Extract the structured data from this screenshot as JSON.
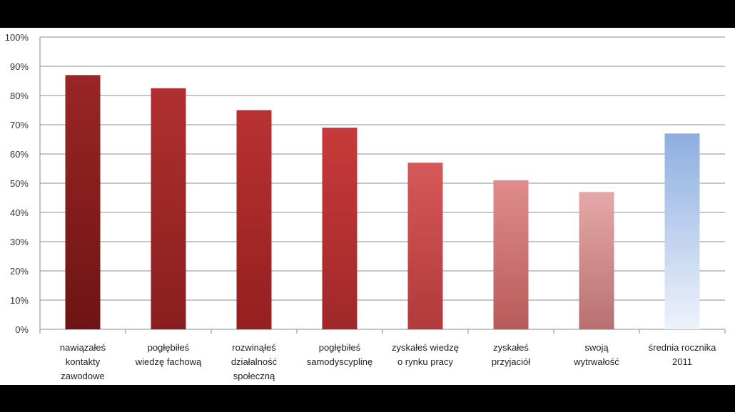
{
  "chart_data": {
    "type": "bar",
    "categories": [
      [
        "nawiązałeś",
        "kontakty",
        "zawodowe"
      ],
      [
        "pogłębiłeś",
        "wiedzę fachową"
      ],
      [
        "rozwinąłeś",
        "działalność",
        "społeczną"
      ],
      [
        "pogłębiłeś",
        "samodyscyplinę"
      ],
      [
        "zyskałeś wiedzę",
        "o rynku pracy"
      ],
      [
        "zyskałeś",
        "przyjaciół"
      ],
      [
        "swoją",
        "wytrwałość"
      ],
      [
        "średnia rocznika",
        "2011"
      ]
    ],
    "values": [
      87,
      82.5,
      75,
      69,
      57,
      51,
      47,
      67
    ],
    "bar_colors": [
      [
        "#9a2626",
        "#6e1414"
      ],
      [
        "#b03030",
        "#8a1e1e"
      ],
      [
        "#b83232",
        "#951f1f"
      ],
      [
        "#c83a3a",
        "#a02828"
      ],
      [
        "#d65858",
        "#b23a3a"
      ],
      [
        "#e08c8c",
        "#b85a5a"
      ],
      [
        "#e6a8a8",
        "#b87070"
      ],
      [
        "#8eaee0",
        "#eef3fb"
      ]
    ],
    "yticks": [
      "0%",
      "10%",
      "20%",
      "30%",
      "40%",
      "50%",
      "60%",
      "70%",
      "80%",
      "90%",
      "100%"
    ],
    "ylim": [
      0,
      100
    ],
    "title": "",
    "xlabel": "",
    "ylabel": "",
    "grid": true,
    "legend": "none"
  }
}
